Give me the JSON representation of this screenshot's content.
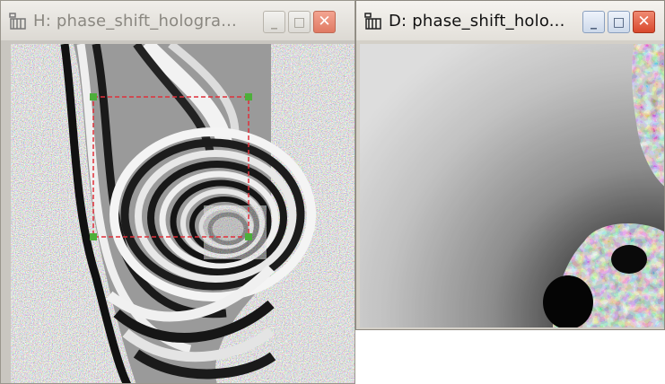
{
  "windows": {
    "hologram": {
      "title": "H: phase_shift_hologra...",
      "icon": "imagej-icon",
      "buttons": {
        "minimize": "_",
        "maximize": "□",
        "close": "✕"
      },
      "roi": {
        "shape": "rectangle",
        "style": "dashed",
        "color": "#e0303a",
        "handle_color": "#4caf3a"
      }
    },
    "result": {
      "title": "D: phase_shift_holo...",
      "icon": "imagej-icon",
      "buttons": {
        "minimize": "_",
        "maximize": "□",
        "close": "✕"
      }
    }
  }
}
